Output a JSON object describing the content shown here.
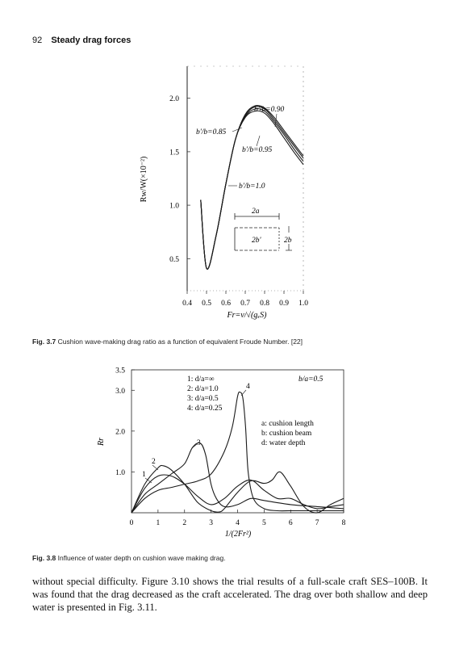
{
  "header": {
    "page_number": "92",
    "running_title": "Steady drag forces"
  },
  "figure_37": {
    "caption_label": "Fig. 3.7",
    "caption_text": "Cushion wave-making drag ratio as a function of equivalent Froude Number. [22]",
    "ylabel": "Rw/W(×10⁻²)",
    "xlabel": "Fr=v/√(gₓS)",
    "x_ticks": [
      "0.4",
      "0.5",
      "0.6",
      "0.7",
      "0.8",
      "0.9",
      "1.0"
    ],
    "y_ticks": [
      "0.5",
      "1.0",
      "1.5",
      "2.0"
    ],
    "annotations": [
      "b'/b=0.90",
      "b'/b=0.85",
      "b'/b=0.95",
      "b'/b=1.0"
    ],
    "inset_labels": {
      "length": "2a",
      "inner_beam": "2b'",
      "beam": "2b"
    }
  },
  "figure_38": {
    "caption_label": "Fig. 3.8",
    "caption_text": "Influence of water depth on cushion wave making drag.",
    "ylabel": "Rr",
    "xlabel": "1/(2Fr²)",
    "x_ticks": [
      "0",
      "1",
      "2",
      "3",
      "4",
      "5",
      "6",
      "7",
      "8"
    ],
    "y_ticks": [
      "1.0",
      "2.0",
      "3.0",
      "3.5"
    ],
    "legend_lines": [
      "1: d/a=∞",
      "2: d/a=1.0",
      "3: d/a=0.5",
      "4: d/a=0.25"
    ],
    "ratio_label": "b/a=0.5",
    "definitions": [
      "a: cushion length",
      "b: cushion beam",
      "d: water depth"
    ],
    "curve_labels": [
      "1",
      "2",
      "3",
      "4"
    ]
  },
  "chart_data": [
    {
      "type": "line",
      "xlabel": "Fr=v/√(gₓS)",
      "ylabel": "Rw/W(×10⁻²)",
      "xlim": [
        0.4,
        1.0
      ],
      "ylim": [
        0.2,
        2.3
      ],
      "series": [
        {
          "name": "b'/b=0.85",
          "x": [
            0.47,
            0.5,
            0.55,
            0.6,
            0.65,
            0.7,
            0.75,
            0.8,
            0.85,
            0.9,
            0.95,
            1.0
          ],
          "y": [
            1.05,
            0.41,
            0.72,
            1.2,
            1.62,
            1.84,
            1.92,
            1.9,
            1.8,
            1.68,
            1.56,
            1.44
          ]
        },
        {
          "name": "b'/b=0.90",
          "x": [
            0.47,
            0.5,
            0.55,
            0.6,
            0.65,
            0.7,
            0.75,
            0.8,
            0.85,
            0.9,
            0.95,
            1.0
          ],
          "y": [
            1.05,
            0.41,
            0.72,
            1.2,
            1.62,
            1.85,
            1.93,
            1.91,
            1.82,
            1.7,
            1.58,
            1.46
          ]
        },
        {
          "name": "b'/b=0.95",
          "x": [
            0.47,
            0.5,
            0.55,
            0.6,
            0.65,
            0.7,
            0.75,
            0.8,
            0.85,
            0.9,
            0.95,
            1.0
          ],
          "y": [
            1.05,
            0.41,
            0.72,
            1.2,
            1.62,
            1.83,
            1.9,
            1.88,
            1.78,
            1.66,
            1.53,
            1.41
          ]
        },
        {
          "name": "b'/b=1.0",
          "x": [
            0.47,
            0.5,
            0.55,
            0.6,
            0.65,
            0.7,
            0.75,
            0.8,
            0.85,
            0.9,
            0.95,
            1.0
          ],
          "y": [
            1.05,
            0.41,
            0.72,
            1.2,
            1.62,
            1.82,
            1.88,
            1.86,
            1.76,
            1.63,
            1.5,
            1.38
          ]
        }
      ]
    },
    {
      "type": "line",
      "xlabel": "1/(2Fr²)",
      "ylabel": "Rr",
      "xlim": [
        0,
        8
      ],
      "ylim": [
        0,
        3.5
      ],
      "series": [
        {
          "name": "1: d/a=∞",
          "x": [
            0,
            0.5,
            1,
            1.5,
            2,
            2.5,
            3,
            3.5,
            4,
            4.5,
            5,
            5.5,
            6,
            6.5,
            7,
            7.5,
            8
          ],
          "y": [
            0,
            0.6,
            0.9,
            0.9,
            0.7,
            0.4,
            0.2,
            0.35,
            0.65,
            0.8,
            0.55,
            0.35,
            0.35,
            0.2,
            0.1,
            0.15,
            0.2
          ]
        },
        {
          "name": "2: d/a=1.0",
          "x": [
            0,
            0.5,
            1,
            1.2,
            1.5,
            2,
            2.5,
            3,
            3.3,
            3.5,
            4,
            4.5,
            5,
            5.3,
            5.6,
            6,
            6.5,
            7,
            7.5,
            8
          ],
          "y": [
            0,
            0.7,
            1.1,
            1.15,
            1.05,
            0.7,
            0.25,
            0.05,
            0.02,
            0.1,
            0.5,
            0.78,
            0.72,
            0.8,
            1.0,
            0.65,
            0.15,
            0.0,
            0.2,
            0.35
          ]
        },
        {
          "name": "3: d/a=0.5",
          "x": [
            0,
            0.5,
            1,
            1.5,
            2,
            2.3,
            2.6,
            2.8,
            3,
            3.2,
            3.5,
            4,
            4.5,
            5,
            6,
            7,
            8
          ],
          "y": [
            0,
            0.45,
            0.7,
            0.95,
            1.2,
            1.6,
            1.7,
            1.4,
            0.7,
            0.35,
            0.15,
            0.2,
            0.35,
            0.3,
            0.2,
            0.15,
            0.1
          ]
        },
        {
          "name": "4: d/a=0.25",
          "x": [
            0,
            0.5,
            1,
            1.5,
            2,
            2.5,
            3,
            3.5,
            3.8,
            4,
            4.1,
            4.2,
            4.3,
            4.4,
            4.6,
            5,
            5.5,
            6,
            6.5,
            7,
            7.5,
            8
          ],
          "y": [
            0,
            0.35,
            0.55,
            0.62,
            0.7,
            0.78,
            0.95,
            1.5,
            2.1,
            2.85,
            2.95,
            2.8,
            2.1,
            1.0,
            0.35,
            0.1,
            0.05,
            0.05,
            0.05,
            0.05,
            0.05,
            0.05
          ]
        }
      ]
    }
  ],
  "body_text": "without special difficulty. Figure 3.10 shows the trial results of a full-scale craft SES–100B. It was found that the drag decreased as the craft accelerated. The drag over both shallow and deep water is presented in Fig. 3.11."
}
